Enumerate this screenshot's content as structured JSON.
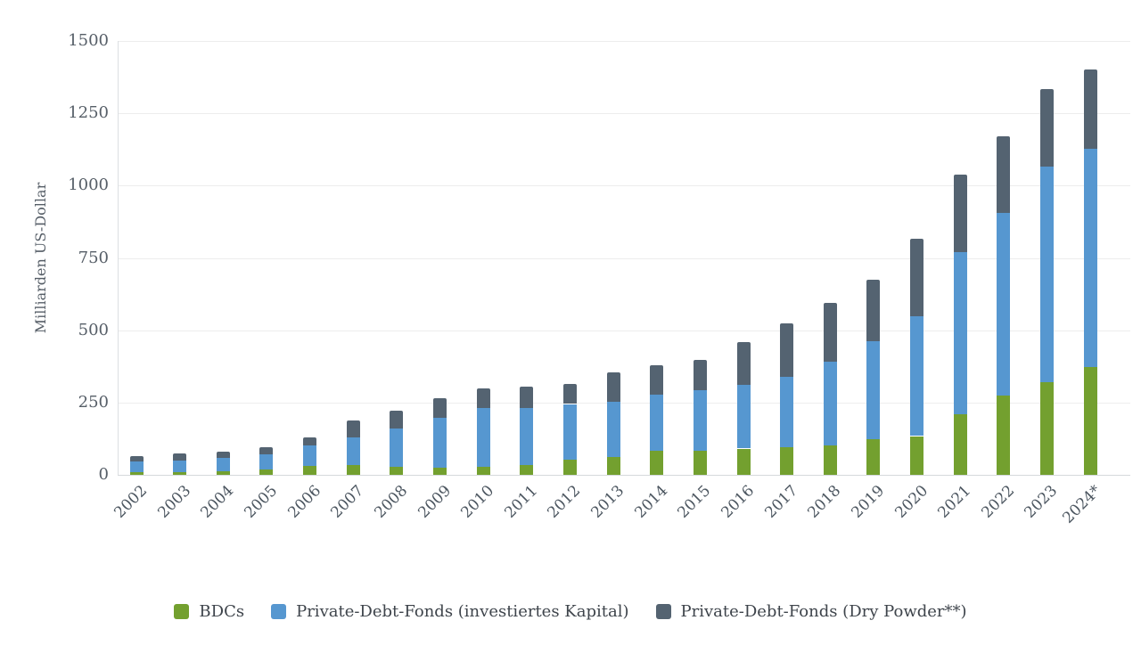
{
  "chart_data": {
    "type": "bar",
    "stacked": true,
    "title": "",
    "ylabel": "Milliarden US-Dollar",
    "xlabel": "",
    "ylim": [
      0,
      1500
    ],
    "yticks": [
      0,
      250,
      500,
      750,
      1000,
      1250,
      1500
    ],
    "grid": true,
    "legend_position": "bottom",
    "categories": [
      "2002",
      "2003",
      "2004",
      "2005",
      "2006",
      "2007",
      "2008",
      "2009",
      "2010",
      "2011",
      "2012",
      "2013",
      "2014",
      "2015",
      "2016",
      "2017",
      "2018",
      "2019",
      "2020",
      "2021",
      "2022",
      "2023",
      "2024*"
    ],
    "series": [
      {
        "name": "BDCs",
        "color": "#73A02F",
        "values": [
          8,
          8,
          13,
          18,
          32,
          35,
          29,
          26,
          27,
          33,
          52,
          63,
          82,
          82,
          91,
          95,
          101,
          123,
          134,
          209,
          274,
          319,
          373
        ]
      },
      {
        "name": "Private-Debt-Fonds (investiertes Kapital)",
        "color": "#5697D0",
        "values": [
          39,
          42,
          45,
          53,
          70,
          95,
          131,
          171,
          205,
          197,
          193,
          190,
          196,
          212,
          221,
          243,
          290,
          338,
          414,
          561,
          632,
          746,
          755
        ]
      },
      {
        "name": "Private-Debt-Fonds (Dry Powder**)",
        "color": "#546371",
        "values": [
          19,
          23,
          21,
          24,
          28,
          59,
          61,
          67,
          68,
          75,
          69,
          100,
          100,
          105,
          147,
          185,
          204,
          214,
          268,
          269,
          264,
          270,
          274
        ]
      }
    ]
  }
}
